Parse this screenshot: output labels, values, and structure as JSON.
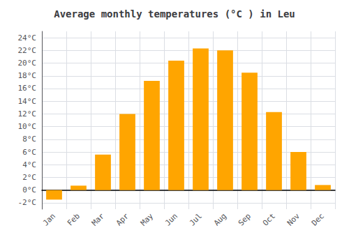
{
  "chart_data": {
    "type": "bar",
    "title": "Average monthly temperatures (°C ) in Leu",
    "categories": [
      "Jan",
      "Feb",
      "Mar",
      "Apr",
      "May",
      "Jun",
      "Jul",
      "Aug",
      "Sep",
      "Oct",
      "Nov",
      "Dec"
    ],
    "values": [
      -1.5,
      0.7,
      5.6,
      12.0,
      17.2,
      20.4,
      22.3,
      22.0,
      18.5,
      12.3,
      6.0,
      0.8
    ],
    "color": "#FFA500",
    "ylim": [
      -3,
      25
    ],
    "yticks": [
      {
        "value": -2,
        "label": "-2°C"
      },
      {
        "value": 0,
        "label": "0°C"
      },
      {
        "value": 2,
        "label": "2°C"
      },
      {
        "value": 4,
        "label": "4°C"
      },
      {
        "value": 6,
        "label": "6°C"
      },
      {
        "value": 8,
        "label": "8°C"
      },
      {
        "value": 10,
        "label": "10°C"
      },
      {
        "value": 12,
        "label": "12°C"
      },
      {
        "value": 14,
        "label": "14°C"
      },
      {
        "value": 16,
        "label": "16°C"
      },
      {
        "value": 18,
        "label": "18°C"
      },
      {
        "value": 20,
        "label": "20°C"
      },
      {
        "value": 22,
        "label": "22°C"
      },
      {
        "value": 24,
        "label": "24°C"
      }
    ],
    "grid": true
  }
}
